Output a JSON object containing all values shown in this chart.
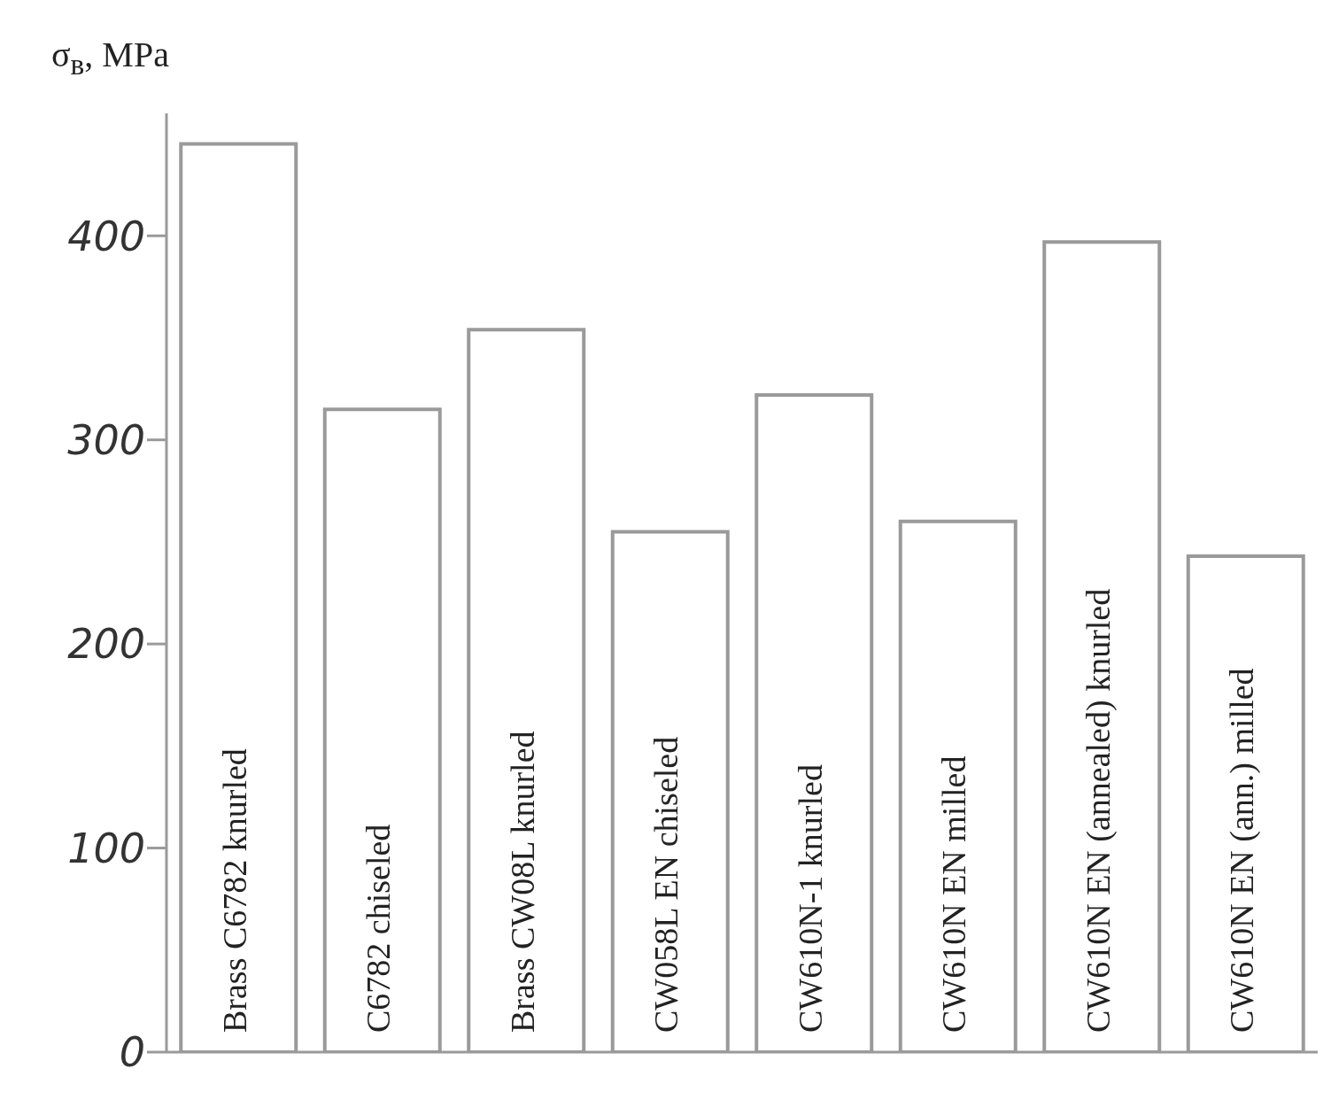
{
  "chart_data": {
    "type": "bar",
    "ylabel": "σ$_{в}$, MPa",
    "categories": [
      "Brass C6782 knurled",
      "C6782 chiseled",
      "Brass CW08L knurled",
      "CW058L EN chiseled",
      "CW610N-1 knurled",
      "CW610N EN milled",
      "CW610N EN (annealed) knurled",
      "CW610N EN (ann.) milled"
    ],
    "values": [
      445,
      315,
      354,
      255,
      322,
      260,
      397,
      243
    ],
    "color": "#ffffff",
    "ylim": [
      0,
      460
    ],
    "yticks": [
      0,
      100,
      200,
      300,
      400
    ],
    "grid": false
  }
}
